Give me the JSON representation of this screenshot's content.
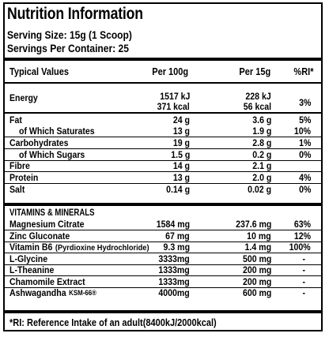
{
  "title": "Nutrition Information",
  "serving_size": "Serving Size: 15g (1 Scoop)",
  "servings_per_container": "Servings Per Container: 25",
  "headers": {
    "typical": "Typical Values",
    "per100": "Per 100g",
    "per15": "Per 15g",
    "ri": "%RI*"
  },
  "energy": {
    "name": "Energy",
    "kj100": "1517 kJ",
    "kcal100": "371 kcal",
    "kj15": "228 kJ",
    "kcal15": "56 kcal",
    "ri": "3%"
  },
  "nutrients": [
    {
      "name": "Fat",
      "per100": "24 g",
      "per15": "3.6 g",
      "ri": "5%"
    },
    {
      "name": "of Which Saturates",
      "per100": "13 g",
      "per15": "1.9 g",
      "ri": "10%"
    },
    {
      "name": "Carbohydrates",
      "per100": "19 g",
      "per15": "2.8 g",
      "ri": "1%"
    },
    {
      "name": "of Which Sugars",
      "per100": "1.5 g",
      "per15": "0.2 g",
      "ri": "0%"
    },
    {
      "name": "Fibre",
      "per100": "14 g",
      "per15": "2.1 g",
      "ri": ""
    },
    {
      "name": "Protein",
      "per100": "13 g",
      "per15": "2.0 g",
      "ri": "4%"
    },
    {
      "name": "Salt",
      "per100": "0.14 g",
      "per15": "0.02 g",
      "ri": "0%"
    }
  ],
  "vitamins_heading": "VITAMINS & MINERALS",
  "vitamins": [
    {
      "name": "Magnesium Citrate",
      "per100": "1584 mg",
      "per15": "237.6 mg",
      "ri": "63%"
    },
    {
      "name": "Zinc Gluconate",
      "per100": "67 mg",
      "per15": "10 mg",
      "ri": "12%"
    },
    {
      "name": "Vitamin B6",
      "name_extra": "(Pyrdioxine Hydrochloride)",
      "per100": "9.3 mg",
      "per15": "1.4 mg",
      "ri": "100%"
    },
    {
      "name": "L-Glycine",
      "per100": "3333mg",
      "per15": "500 mg",
      "ri": "-"
    },
    {
      "name": "L-Theanine",
      "per100": "1333mg",
      "per15": "200 mg",
      "ri": "-"
    },
    {
      "name": "Chamomile Extract",
      "per100": "1333mg",
      "per15": "200 mg",
      "ri": "-"
    },
    {
      "name": "Ashwagandha",
      "name_extra": "KSM-66®",
      "per100": "4000mg",
      "per15": "600 mg",
      "ri": "-"
    }
  ],
  "footnote": "*RI: Reference Intake of an adult(8400kJ/2000kcal)"
}
